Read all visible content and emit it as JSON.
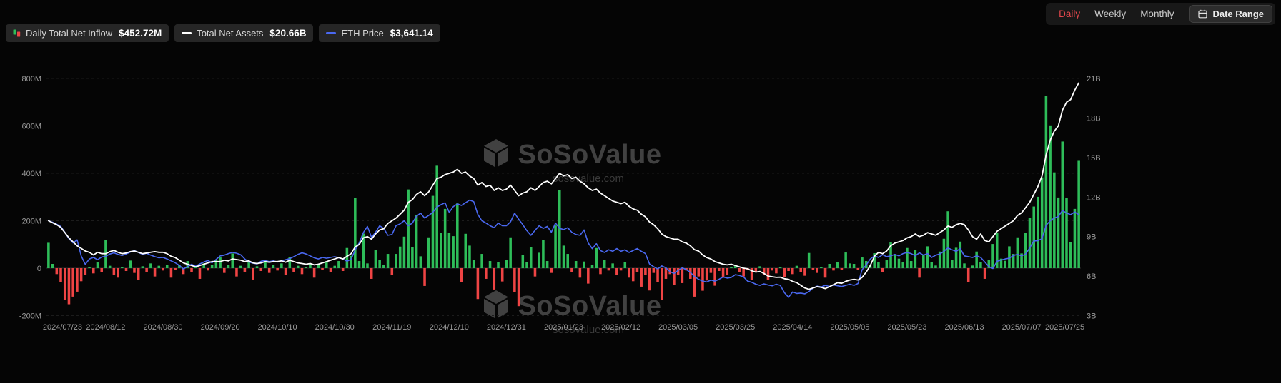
{
  "controls": {
    "periods": [
      {
        "label": "Daily",
        "active": true
      },
      {
        "label": "Weekly",
        "active": false
      },
      {
        "label": "Monthly",
        "active": false
      }
    ],
    "date_range": "Date Range"
  },
  "legend": {
    "items": [
      {
        "icon": "inflow-bars-icon",
        "label": "Daily Total Net Inflow",
        "value": "$452.72M"
      },
      {
        "icon": "assets-line-icon",
        "label": "Total Net Assets",
        "value": "$20.66B"
      },
      {
        "icon": "eth-line-icon",
        "label": "ETH Price",
        "value": "$3,641.14"
      }
    ]
  },
  "watermark": {
    "title": "SoSoValue",
    "domain": "sosovalue.com"
  },
  "colors": {
    "inflow_pos": "#2ebd59",
    "inflow_neg": "#ef4444",
    "assets_line": "#ffffff",
    "eth_line": "#4a68f0",
    "accent_active": "#e5484d"
  },
  "chart_data": {
    "type": "bar+line",
    "legend_position": "top-left",
    "grid": true,
    "x_tick_every": 14,
    "x_tick_labels": [
      "2024/07/23",
      "2024/08/12",
      "2024/08/30",
      "2024/09/20",
      "2024/10/10",
      "2024/10/30",
      "2024/11/19",
      "2024/12/10",
      "2024/12/31",
      "2025/01/23",
      "2025/02/12",
      "2025/03/05",
      "2025/03/25",
      "2025/04/14",
      "2025/05/05",
      "2025/05/23",
      "2025/06/13",
      "2025/07/07",
      "2025/07/25"
    ],
    "left_axis": {
      "unit": "USD M",
      "min": -200,
      "max": 800,
      "tick_values": [
        -200,
        0,
        200,
        400,
        600,
        800
      ],
      "tick_labels": [
        "-200M",
        "0",
        "200M",
        "400M",
        "600M",
        "800M"
      ]
    },
    "right_axis": {
      "unit": "USD B",
      "min": 3,
      "max": 21,
      "tick_values": [
        3,
        6,
        9,
        12,
        15,
        18,
        21
      ],
      "tick_labels": [
        "3B",
        "6B",
        "9B",
        "12B",
        "15B",
        "18B",
        "21B"
      ]
    },
    "eth_axis": {
      "unit": "USD",
      "min": 1000,
      "max": 7200,
      "hidden": true
    },
    "series": [
      {
        "name": "Daily Total Net Inflow",
        "type": "bar",
        "axis": "left",
        "latest": 452.72,
        "values": [
          107,
          18,
          -25,
          -60,
          -133,
          -152,
          -120,
          -99,
          -55,
          -30,
          5,
          -22,
          24,
          -16,
          120,
          10,
          -30,
          -40,
          5,
          -12,
          32,
          -20,
          -50,
          8,
          -15,
          20,
          -35,
          10,
          -10,
          15,
          -40,
          -6,
          12,
          -25,
          30,
          -15,
          8,
          -45,
          20,
          -10,
          15,
          34,
          45,
          -20,
          12,
          62,
          -35,
          10,
          -15,
          25,
          -48,
          8,
          -12,
          30,
          -20,
          15,
          -10,
          20,
          -30,
          48,
          -15,
          10,
          -25,
          5,
          18,
          -40,
          12,
          -8,
          25,
          -15,
          10,
          30,
          -12,
          85,
          52,
          295,
          30,
          146,
          20,
          -45,
          78,
          35,
          15,
          60,
          -30,
          60,
          91,
          133,
          332,
          90,
          224,
          50,
          -75,
          130,
          305,
          432,
          150,
          250,
          150,
          135,
          273,
          -60,
          145,
          95,
          35,
          -130,
          60,
          -45,
          30,
          -90,
          25,
          -56,
          36,
          130,
          -100,
          -160,
          55,
          25,
          90,
          -35,
          65,
          120,
          30,
          -20,
          180,
          330,
          95,
          60,
          -15,
          30,
          -40,
          28,
          -65,
          12,
          85,
          -25,
          35,
          -10,
          20,
          -30,
          -10,
          25,
          -40,
          -55,
          -15,
          -78,
          -30,
          -94,
          -20,
          -60,
          -135,
          -45,
          -25,
          -70,
          -30,
          -63,
          -10,
          -45,
          -120,
          -35,
          -95,
          -52,
          -20,
          -74,
          -12,
          -40,
          -28,
          6,
          12,
          -18,
          -35,
          -6,
          -50,
          -15,
          8,
          -30,
          -49,
          -10,
          -22,
          5,
          -37,
          -12,
          -25,
          10,
          -15,
          -32,
          64,
          -8,
          -20,
          5,
          -40,
          18,
          -10,
          25,
          -6,
          66,
          20,
          18,
          -9,
          45,
          30,
          12,
          63,
          25,
          -15,
          35,
          110,
          58,
          40,
          25,
          85,
          30,
          78,
          -40,
          57,
          92,
          25,
          11,
          70,
          124,
          240,
          35,
          86,
          112,
          20,
          -60,
          11,
          70,
          25,
          -45,
          35,
          102,
          148,
          40,
          31,
          92,
          60,
          130,
          62,
          150,
          211,
          260,
          301,
          383,
          726,
          602,
          404,
          298,
          534,
          296,
          110,
          250,
          452.72
        ]
      },
      {
        "name": "Total Net Assets",
        "type": "line",
        "axis": "right",
        "latest": 20.66,
        "values": [
          10.2,
          10.05,
          9.9,
          9.7,
          9.3,
          8.9,
          8.6,
          8.3,
          8.1,
          7.9,
          7.8,
          7.6,
          7.8,
          7.7,
          7.7,
          7.85,
          7.95,
          7.8,
          7.7,
          7.75,
          7.85,
          7.9,
          7.8,
          7.7,
          7.75,
          7.8,
          7.85,
          7.8,
          7.8,
          7.7,
          7.5,
          7.4,
          7.2,
          7.0,
          6.9,
          6.8,
          6.7,
          6.8,
          6.9,
          7.0,
          7.1,
          7.1,
          7.1,
          7.2,
          7.15,
          7.3,
          7.25,
          7.2,
          7.1,
          7.15,
          7.0,
          6.95,
          7.0,
          7.1,
          7.05,
          7.1,
          7.1,
          7.15,
          7.05,
          7.2,
          7.1,
          7.0,
          6.95,
          6.9,
          6.95,
          6.85,
          6.9,
          7.0,
          7.1,
          7.2,
          7.3,
          7.4,
          7.3,
          7.5,
          7.7,
          8.2,
          8.4,
          8.9,
          9.0,
          8.8,
          9.2,
          9.5,
          9.6,
          10.0,
          10.2,
          10.4,
          10.7,
          11.0,
          11.6,
          11.8,
          12.2,
          12.4,
          12.1,
          12.4,
          12.9,
          13.4,
          13.5,
          13.7,
          13.8,
          13.9,
          14.1,
          13.8,
          13.9,
          13.6,
          13.4,
          12.9,
          13.1,
          12.8,
          12.9,
          12.5,
          12.7,
          12.5,
          12.6,
          12.9,
          12.5,
          12.1,
          12.3,
          12.4,
          12.7,
          12.5,
          12.8,
          13.1,
          13.2,
          13.0,
          13.4,
          13.8,
          13.6,
          13.7,
          13.4,
          13.5,
          13.2,
          13.0,
          12.7,
          12.5,
          12.6,
          12.3,
          12.1,
          11.9,
          11.7,
          11.6,
          11.5,
          11.6,
          11.3,
          11.1,
          11.0,
          10.7,
          10.5,
          10.1,
          9.9,
          9.6,
          9.2,
          9.0,
          8.9,
          8.8,
          8.8,
          8.6,
          8.5,
          8.3,
          8.0,
          7.9,
          7.6,
          7.4,
          7.3,
          7.1,
          7.0,
          6.9,
          6.85,
          6.9,
          6.8,
          6.7,
          6.6,
          6.55,
          6.4,
          6.3,
          6.35,
          6.2,
          6.0,
          5.95,
          5.9,
          5.92,
          5.8,
          5.75,
          5.6,
          5.5,
          5.3,
          5.1,
          5.0,
          5.1,
          5.2,
          5.15,
          5.05,
          5.2,
          5.35,
          5.5,
          5.45,
          5.6,
          5.7,
          5.75,
          5.7,
          5.9,
          6.3,
          6.8,
          7.5,
          7.8,
          7.7,
          7.9,
          8.3,
          8.5,
          8.6,
          8.7,
          8.9,
          9.0,
          9.2,
          9.0,
          9.1,
          9.3,
          9.2,
          9.1,
          9.3,
          9.5,
          9.8,
          9.7,
          9.9,
          10.0,
          9.9,
          9.5,
          9.0,
          8.8,
          9.2,
          8.7,
          8.6,
          9.0,
          9.4,
          9.6,
          9.8,
          10.0,
          10.2,
          10.6,
          10.8,
          11.2,
          11.6,
          12.2,
          12.8,
          13.6,
          15.2,
          16.3,
          17.0,
          17.4,
          18.6,
          19.2,
          19.4,
          20.1,
          20.66
        ]
      },
      {
        "name": "ETH Price",
        "type": "line",
        "axis": "eth",
        "latest": 3641.14,
        "values": [
          3480,
          3440,
          3390,
          3330,
          3180,
          3010,
          2900,
          2980,
          2560,
          2340,
          2480,
          2520,
          2460,
          2530,
          2550,
          2610,
          2640,
          2600,
          2570,
          2610,
          2660,
          2700,
          2650,
          2600,
          2630,
          2580,
          2540,
          2510,
          2520,
          2480,
          2430,
          2380,
          2310,
          2220,
          2280,
          2340,
          2290,
          2350,
          2400,
          2440,
          2380,
          2470,
          2560,
          2580,
          2620,
          2650,
          2630,
          2590,
          2480,
          2400,
          2370,
          2350,
          2420,
          2440,
          2410,
          2430,
          2400,
          2430,
          2460,
          2490,
          2540,
          2600,
          2640,
          2610,
          2560,
          2510,
          2480,
          2520,
          2500,
          2520,
          2540,
          2510,
          2480,
          2420,
          2470,
          2720,
          2900,
          3170,
          3330,
          3050,
          3180,
          3350,
          3280,
          3100,
          3120,
          3350,
          3400,
          3480,
          3350,
          3420,
          3600,
          3680,
          3550,
          3620,
          3700,
          3840,
          3900,
          3950,
          3700,
          3850,
          3920,
          3880,
          3950,
          4020,
          3980,
          3650,
          3480,
          3420,
          3350,
          3300,
          3420,
          3350,
          3350,
          3450,
          3680,
          3520,
          3380,
          3220,
          3100,
          3230,
          3350,
          3280,
          3330,
          3180,
          3420,
          3280,
          3250,
          3300,
          3180,
          3120,
          3100,
          3240,
          2900,
          2750,
          2880,
          2700,
          2650,
          2720,
          2680,
          2750,
          2680,
          2720,
          2650,
          2700,
          2750,
          2680,
          2620,
          2350,
          2280,
          2220,
          2300,
          2250,
          2150,
          2100,
          2180,
          2250,
          2200,
          2130,
          2020,
          1950,
          1900,
          1880,
          1930,
          1900,
          1950,
          2010,
          1980,
          2000,
          2070,
          2050,
          2010,
          1900,
          1870,
          1820,
          1790,
          1830,
          1800,
          1780,
          1820,
          1790,
          1600,
          1480,
          1620,
          1580,
          1590,
          1570,
          1630,
          1720,
          1770,
          1750,
          1790,
          1760,
          1800,
          1780,
          1760,
          1790,
          1820,
          1790,
          1840,
          2200,
          2320,
          2480,
          2560,
          2520,
          2590,
          2540,
          2560,
          2600,
          2560,
          2620,
          2650,
          2620,
          2560,
          2640,
          2580,
          2620,
          2520,
          2580,
          2610,
          2680,
          2770,
          2720,
          2680,
          2750,
          2560,
          2540,
          2520,
          2560,
          2520,
          2400,
          2280,
          2230,
          2420,
          2450,
          2480,
          2500,
          2570,
          2600,
          2560,
          2610,
          2770,
          2950,
          2960,
          3010,
          3360,
          3480,
          3550,
          3590,
          3750,
          3680,
          3640,
          3710,
          3641.14
        ]
      }
    ]
  }
}
